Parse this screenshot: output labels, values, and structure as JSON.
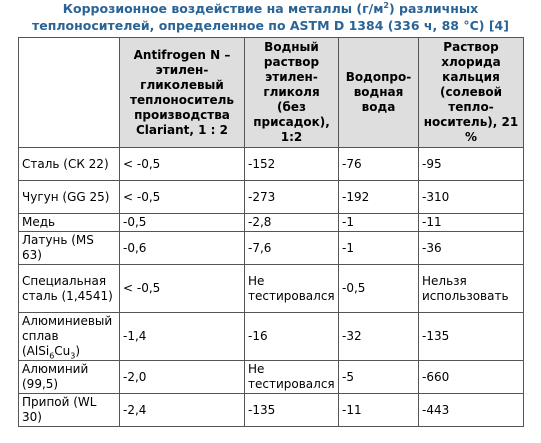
{
  "caption": {
    "line1_before": "Коррозионное воздействие на металлы (г/м",
    "line1_sup": "2",
    "line1_after": ") различных",
    "line2": "теплоносителей, определенное по ASTM D 1384 (336 ч, 88 °C) [4]"
  },
  "table": {
    "header": {
      "corner": "",
      "col1": "Antifrogen N – этилен­гликолевый теплоноситель производства Clariant, 1 : 2",
      "col2": "Водный раствор этилен­гликоля (без присадок), 1:2",
      "col3": "Водопро­водная вода",
      "col4": "Раствор хлорида кальция (солевой тепло­носитель), 21 %"
    },
    "rows": [
      {
        "label": "Сталь (СК 22)",
        "v1": "< -0,5",
        "v2": "-152",
        "v3": "-76",
        "v4": "-95"
      },
      {
        "label": "Чугун (GG 25)",
        "v1": "< -0,5",
        "v2": "-273",
        "v3": "-192",
        "v4": "-310"
      },
      {
        "label": "Медь",
        "v1": "-0,5",
        "v2": "-2,8",
        "v3": "-1",
        "v4": "-11"
      },
      {
        "label": "Латунь (MS 63)",
        "v1": "-0,6",
        "v2": "-7,6",
        "v3": "-1",
        "v4": "-36"
      },
      {
        "label": "Специаль­ная сталь (1,4541)",
        "v1": "< -0,5",
        "v2": "Не тестировался",
        "v3": "-0,5",
        "v4": "Нельзя использовать"
      },
      {
        "label_before": "Алюминиевый сплав (AlSi",
        "label_sub1": "6",
        "label_mid": "Cu",
        "label_sub2": "3",
        "label_after": ")",
        "v1": "-1,4",
        "v2": "-16",
        "v3": "-32",
        "v4": "-135"
      },
      {
        "label": "Алюминий (99,5)",
        "v1": "-2,0",
        "v2": "Не тестировался",
        "v3": "-5",
        "v4": "-660"
      },
      {
        "label": "Припой (WL 30)",
        "v1": "-2,4",
        "v2": "-135",
        "v3": "-11",
        "v4": "-443"
      }
    ]
  },
  "colors": {
    "caption": "#2a6496",
    "header_bg": "#dedede",
    "border": "#555555"
  }
}
